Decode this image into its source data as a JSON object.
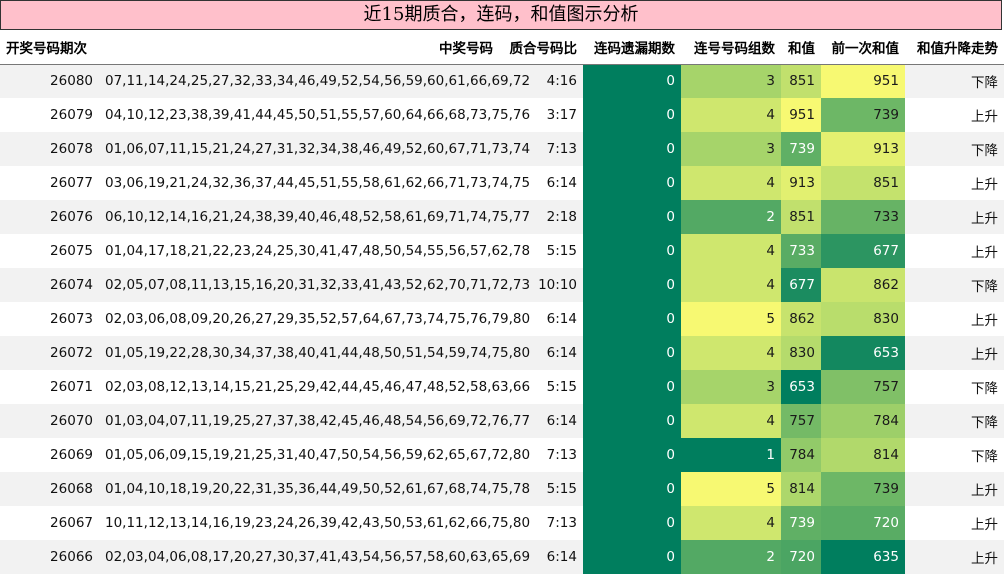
{
  "title": "近15期质合，连码，和值图示分析",
  "headers": [
    "开奖号码期次",
    "中奖号码",
    "质合号码比",
    "连码遗漏期数",
    "连号号码组数",
    "和值",
    "前一次和值",
    "和值升降走势"
  ],
  "rows": [
    {
      "period": "26080",
      "numbers": "07,11,14,24,25,27,32,33,34,46,49,52,54,56,59,60,61,66,69,72",
      "ratio": "4:16",
      "miss": "0",
      "groups": "3",
      "sum": "851",
      "prev_sum": "951",
      "trend": "下降"
    },
    {
      "period": "26079",
      "numbers": "04,10,12,23,38,39,41,44,45,50,51,55,57,60,64,66,68,73,75,76",
      "ratio": "3:17",
      "miss": "0",
      "groups": "4",
      "sum": "951",
      "prev_sum": "739",
      "trend": "上升"
    },
    {
      "period": "26078",
      "numbers": "01,06,07,11,15,21,24,27,31,32,34,38,46,49,52,60,67,71,73,74",
      "ratio": "7:13",
      "miss": "0",
      "groups": "3",
      "sum": "739",
      "prev_sum": "913",
      "trend": "下降"
    },
    {
      "period": "26077",
      "numbers": "03,06,19,21,24,32,36,37,44,45,51,55,58,61,62,66,71,73,74,75",
      "ratio": "6:14",
      "miss": "0",
      "groups": "4",
      "sum": "913",
      "prev_sum": "851",
      "trend": "上升"
    },
    {
      "period": "26076",
      "numbers": "06,10,12,14,16,21,24,38,39,40,46,48,52,58,61,69,71,74,75,77",
      "ratio": "2:18",
      "miss": "0",
      "groups": "2",
      "sum": "851",
      "prev_sum": "733",
      "trend": "上升"
    },
    {
      "period": "26075",
      "numbers": "01,04,17,18,21,22,23,24,25,30,41,47,48,50,54,55,56,57,62,78",
      "ratio": "5:15",
      "miss": "0",
      "groups": "4",
      "sum": "733",
      "prev_sum": "677",
      "trend": "上升"
    },
    {
      "period": "26074",
      "numbers": "02,05,07,08,11,13,15,16,20,31,32,33,41,43,52,62,70,71,72,73",
      "ratio": "10:10",
      "miss": "0",
      "groups": "4",
      "sum": "677",
      "prev_sum": "862",
      "trend": "下降"
    },
    {
      "period": "26073",
      "numbers": "02,03,06,08,09,20,26,27,29,35,52,57,64,67,73,74,75,76,79,80",
      "ratio": "6:14",
      "miss": "0",
      "groups": "5",
      "sum": "862",
      "prev_sum": "830",
      "trend": "上升"
    },
    {
      "period": "26072",
      "numbers": "01,05,19,22,28,30,34,37,38,40,41,44,48,50,51,54,59,74,75,80",
      "ratio": "6:14",
      "miss": "0",
      "groups": "4",
      "sum": "830",
      "prev_sum": "653",
      "trend": "上升"
    },
    {
      "period": "26071",
      "numbers": "02,03,08,12,13,14,15,21,25,29,42,44,45,46,47,48,52,58,63,66",
      "ratio": "5:15",
      "miss": "0",
      "groups": "3",
      "sum": "653",
      "prev_sum": "757",
      "trend": "下降"
    },
    {
      "period": "26070",
      "numbers": "01,03,04,07,11,19,25,27,37,38,42,45,46,48,54,56,69,72,76,77",
      "ratio": "6:14",
      "miss": "0",
      "groups": "4",
      "sum": "757",
      "prev_sum": "784",
      "trend": "下降"
    },
    {
      "period": "26069",
      "numbers": "01,05,06,09,15,19,21,25,31,40,47,50,54,56,59,62,65,67,72,80",
      "ratio": "7:13",
      "miss": "0",
      "groups": "1",
      "sum": "784",
      "prev_sum": "814",
      "trend": "下降"
    },
    {
      "period": "26068",
      "numbers": "01,04,10,18,19,20,22,31,35,36,44,49,50,52,61,67,68,74,75,78",
      "ratio": "5:15",
      "miss": "0",
      "groups": "5",
      "sum": "814",
      "prev_sum": "739",
      "trend": "上升"
    },
    {
      "period": "26067",
      "numbers": "10,11,12,13,14,16,19,23,24,26,39,42,43,50,53,61,62,66,75,80",
      "ratio": "7:13",
      "miss": "0",
      "groups": "4",
      "sum": "739",
      "prev_sum": "720",
      "trend": "上升"
    },
    {
      "period": "26066",
      "numbers": "02,03,04,06,08,17,20,27,30,37,41,43,54,56,57,58,60,63,65,69",
      "ratio": "6:14",
      "miss": "0",
      "groups": "2",
      "sum": "720",
      "prev_sum": "635",
      "trend": "上升"
    }
  ],
  "colors": {
    "title_bg": "#ffc0cb",
    "miss_fill": "#007e5e",
    "heat_low": "#007e5e",
    "heat_mid": "#a6d46a",
    "heat_high": "#f7f972"
  }
}
